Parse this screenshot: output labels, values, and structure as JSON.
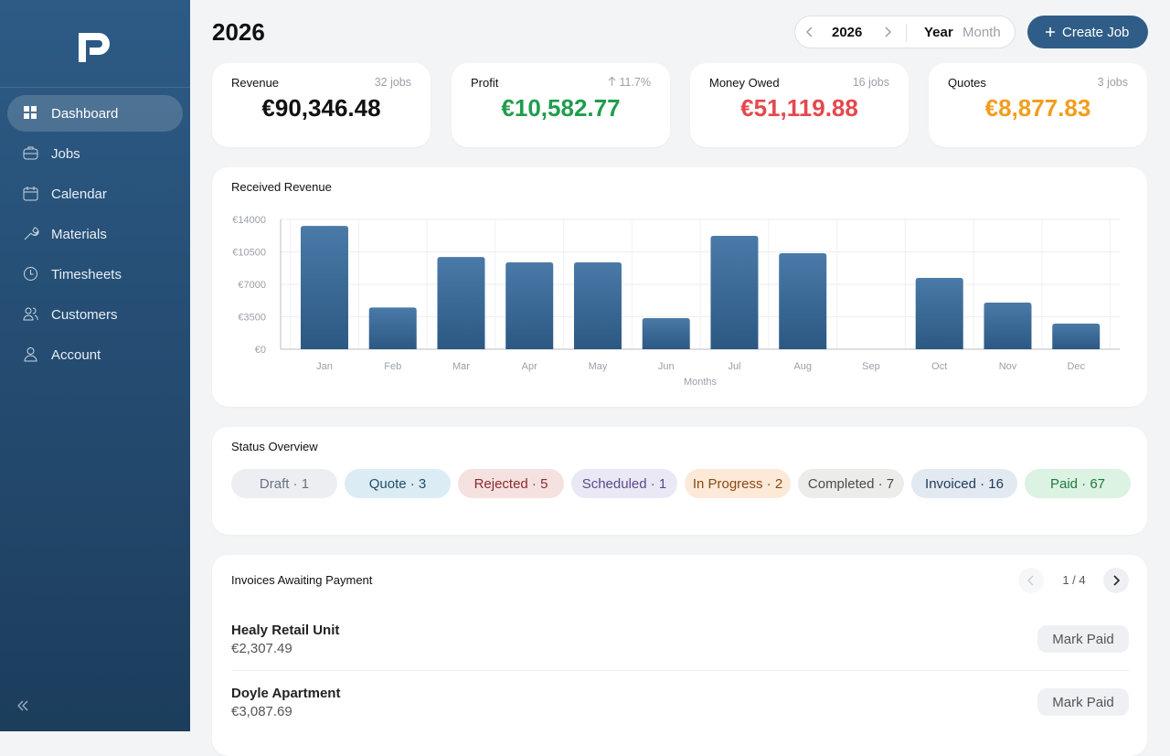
{
  "sidebar": {
    "nav": [
      "Dashboard",
      "Jobs",
      "Calendar",
      "Materials",
      "Timesheets",
      "Customers",
      "Account"
    ]
  },
  "header": {
    "title": "2026",
    "year": "2026",
    "modes": [
      "Year",
      "Month"
    ],
    "create_button": "Create Job"
  },
  "stats": [
    {
      "label": "Revenue",
      "meta": "32 jobs",
      "value": "€90,346.48"
    },
    {
      "label": "Profit",
      "meta": "11.7%",
      "value": "€10,582.77"
    },
    {
      "label": "Money Owed",
      "meta": "16 jobs",
      "value": "€51,119.88"
    },
    {
      "label": "Quotes",
      "meta": "3 jobs",
      "value": "€8,877.83"
    }
  ],
  "chart_data": {
    "type": "bar",
    "title": "Received Revenue",
    "x_label": "Months",
    "categories": [
      "Jan",
      "Feb",
      "Mar",
      "Apr",
      "May",
      "Jun",
      "Jul",
      "Aug",
      "Sep",
      "Oct",
      "Nov",
      "Dec"
    ],
    "values": [
      13300,
      4500,
      9950,
      9370,
      9370,
      3350,
      12230,
      10350,
      0,
      7690,
      5030,
      2760
    ],
    "ylim": [
      0,
      14000
    ],
    "yticks": [
      {
        "value": 0,
        "label": "€0"
      },
      {
        "value": 3500,
        "label": "€3500"
      },
      {
        "value": 7000,
        "label": "€7000"
      },
      {
        "value": 10500,
        "label": "€10500"
      },
      {
        "value": 14000,
        "label": "€14000"
      }
    ],
    "grid": true,
    "color": "#3d6a96"
  },
  "status": {
    "title": "Status Overview",
    "pills": [
      "Draft · 1",
      "Quote · 3",
      "Rejected · 5",
      "Scheduled · 1",
      "In Progress · 2",
      "Completed · 7",
      "Invoiced · 16",
      "Paid · 67"
    ]
  },
  "invoices": {
    "title": "Invoices Awaiting Payment",
    "page": "1 / 4",
    "items": [
      {
        "name": "Healy Retail Unit",
        "amount": "€2,307.49",
        "action": "Mark Paid"
      },
      {
        "name": "Doyle Apartment",
        "amount": "€3,087.69",
        "action": "Mark Paid"
      }
    ]
  }
}
